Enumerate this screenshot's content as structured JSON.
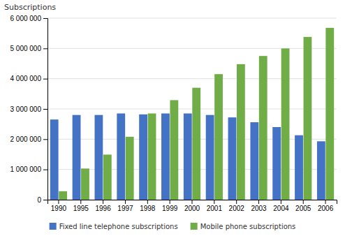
{
  "chart_data": {
    "type": "bar",
    "ylabel": "Subscriptions",
    "categories": [
      "1990",
      "1995",
      "1996",
      "1997",
      "1998",
      "1999",
      "2000",
      "2001",
      "2002",
      "2003",
      "2004",
      "2005",
      "2006"
    ],
    "series": [
      {
        "name": "Fixed line telephone subscriptions",
        "color": "#4472c4",
        "values": [
          2650000,
          2800000,
          2800000,
          2850000,
          2820000,
          2850000,
          2850000,
          2800000,
          2720000,
          2560000,
          2400000,
          2130000,
          1930000
        ]
      },
      {
        "name": "Mobile phone subscriptions",
        "color": "#70ad47",
        "values": [
          280000,
          1030000,
          1490000,
          2080000,
          2850000,
          3290000,
          3700000,
          4150000,
          4480000,
          4750000,
          5000000,
          5380000,
          5680000
        ]
      }
    ],
    "ylim": [
      0,
      6000000
    ],
    "yticks": [
      0,
      {
        "value": 1000000,
        "label": "1 000 000"
      },
      {
        "value": 2000000,
        "label": "2 000 000"
      },
      {
        "value": 3000000,
        "label": "3 000 000"
      },
      {
        "value": 4000000,
        "label": "4 000 000"
      },
      {
        "value": 5000000,
        "label": "5 000 000"
      },
      {
        "value": 6000000,
        "label": "6 000 000"
      }
    ],
    "grid": true,
    "legend": "bottom"
  }
}
